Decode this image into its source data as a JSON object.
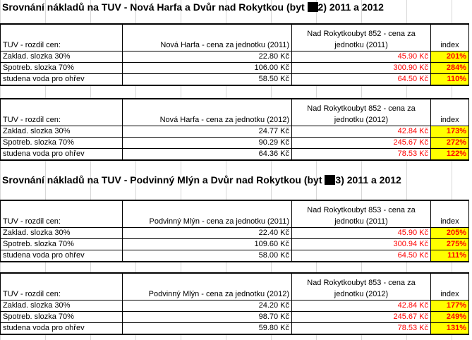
{
  "heading1": {
    "before": "Srovnání nákladů na TUV - Nová Harfa a Dvůr nad Rokytkou (byt ",
    "after": "2) 2011 a 2012"
  },
  "heading2": {
    "before": "Srovnání nákladů na TUV - Podvinný Mlýn a Dvůr nad Rokytkou (byt ",
    "after": "3) 2011 a 2012"
  },
  "tables": [
    {
      "h0": "TUV - rozdil cen:",
      "h1": "Nová Harfa - cena za jednotku  (2011)",
      "h2": "Nad Rokytkoubyt 852  - cena za jednotku (2011)",
      "h3": "index",
      "rows": [
        {
          "label": "Zaklad. slozka 30%",
          "a": "22.80 Kč",
          "b": "45.90 Kč",
          "idx": "201%"
        },
        {
          "label": "Spotreb. slozka 70%",
          "a": "106.00 Kč",
          "b": "300.90 Kč",
          "idx": "284%"
        },
        {
          "label": "studena voda pro ohřev",
          "a": "58.50 Kč",
          "b": "64.50 Kč",
          "idx": "110%"
        }
      ]
    },
    {
      "h0": "TUV - rozdil cen:",
      "h1": "Nová Harfa - cena za jednotku  (2012)",
      "h2": "Nad Rokytkoubyt 852  - cena za jednotku (2012)",
      "h3": "index",
      "rows": [
        {
          "label": "Zaklad. slozka 30%",
          "a": "24.77 Kč",
          "b": "42.84 Kč",
          "idx": "173%"
        },
        {
          "label": "Spotreb. slozka 70%",
          "a": "90.29 Kč",
          "b": "245.67 Kč",
          "idx": "272%"
        },
        {
          "label": "studena voda pro ohřev",
          "a": "64.36 Kč",
          "b": "78.53 Kč",
          "idx": "122%"
        }
      ]
    },
    {
      "h0": "TUV - rozdil cen:",
      "h1": "Podvinný Mlýn - cena za jednotku  (2011)",
      "h2": "Nad Rokytkoubyt 853  - cena za jednotku  (2011)",
      "h3": "index",
      "rows": [
        {
          "label": "Zaklad. slozka 30%",
          "a": "22.40 Kč",
          "b": "45.90 Kč",
          "idx": "205%"
        },
        {
          "label": "Spotreb. slozka 70%",
          "a": "109.60 Kč",
          "b": "300.94 Kč",
          "idx": "275%"
        },
        {
          "label": "studena voda pro ohřev",
          "a": "58.00 Kč",
          "b": "64.50 Kč",
          "idx": "111%"
        }
      ]
    },
    {
      "h0": "TUV - rozdil cen:",
      "h1": "Podvinný Mlýn - cena za jednotku  (2012)",
      "h2": "Nad Rokytkoubyt 853  - cena za jednotku (2012)",
      "h3": "index",
      "rows": [
        {
          "label": "Zaklad. slozka 30%",
          "a": "24.20 Kč",
          "b": "42.84 Kč",
          "idx": "177%"
        },
        {
          "label": "Spotreb. slozka 70%",
          "a": "98.70 Kč",
          "b": "245.67 Kč",
          "idx": "249%"
        },
        {
          "label": "studena voda pro ohřev",
          "a": "59.80 Kč",
          "b": "78.53 Kč",
          "idx": "131%"
        }
      ]
    }
  ]
}
